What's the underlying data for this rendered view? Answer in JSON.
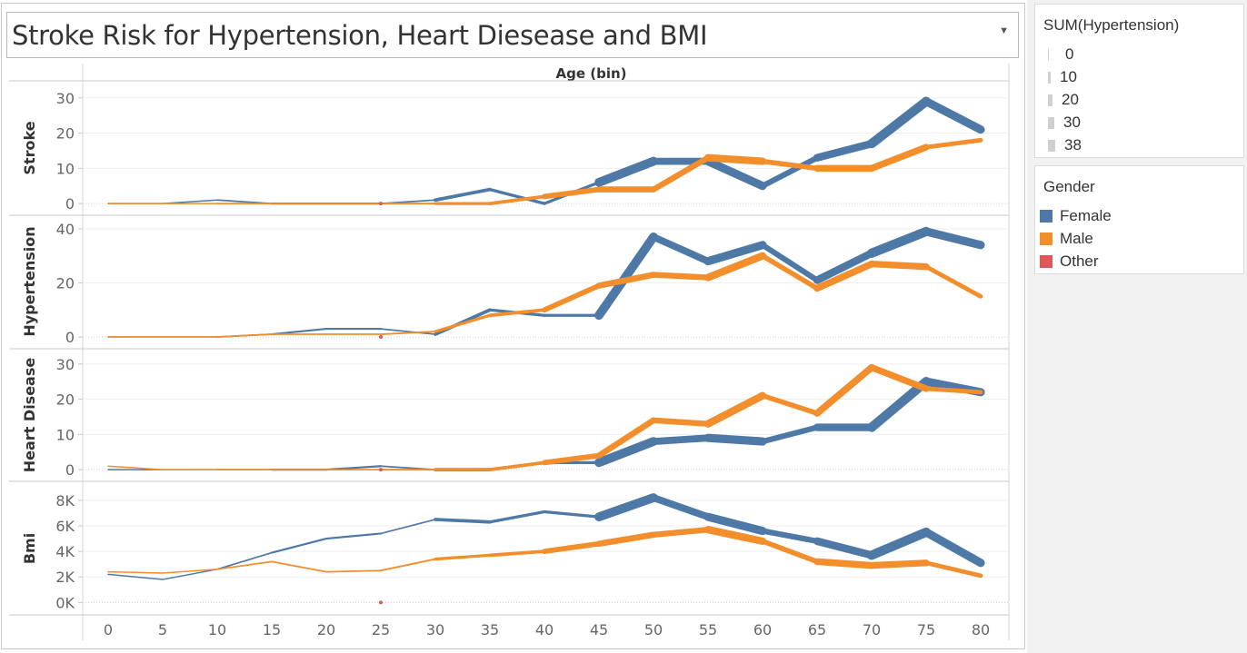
{
  "title": "Stroke Risk for Hypertension, Heart Diesease and BMI",
  "legends": {
    "size": {
      "title": "SUM(Hypertension)",
      "items": [
        "0",
        "10",
        "20",
        "30",
        "38"
      ]
    },
    "color": {
      "title": "Gender",
      "items": [
        {
          "label": "Female",
          "color": "#4e79a7"
        },
        {
          "label": "Male",
          "color": "#f28e2b"
        },
        {
          "label": "Other",
          "color": "#e15759"
        }
      ]
    }
  },
  "chart_data": {
    "type": "line",
    "column_header": "Age (bin)",
    "x": [
      0,
      5,
      10,
      15,
      20,
      25,
      30,
      35,
      40,
      45,
      50,
      55,
      60,
      65,
      70,
      75,
      80
    ],
    "x_ticks": [
      "0",
      "5",
      "10",
      "15",
      "20",
      "25",
      "30",
      "35",
      "40",
      "45",
      "50",
      "55",
      "60",
      "65",
      "70",
      "75",
      "80"
    ],
    "size_by": "SUM(Hypertension)",
    "panels": [
      {
        "label": "Stroke",
        "ylim": [
          -1,
          32
        ],
        "ticks": [
          {
            "v": 0,
            "label": "0"
          },
          {
            "v": 10,
            "label": "10"
          },
          {
            "v": 20,
            "label": "20"
          },
          {
            "v": 30,
            "label": "30"
          }
        ],
        "series": [
          {
            "name": "Female",
            "values": [
              0,
              0,
              1,
              0,
              0,
              0,
              1,
              4,
              0,
              6,
              12,
              12,
              5,
              13,
              17,
              29,
              21
            ]
          },
          {
            "name": "Male",
            "values": [
              0,
              0,
              0,
              0,
              0,
              0,
              0,
              0,
              2,
              4,
              4,
              13,
              12,
              10,
              10,
              16,
              18
            ]
          },
          {
            "name": "Other",
            "points": [
              [
                25,
                0
              ]
            ]
          }
        ]
      },
      {
        "label": "Hypertension",
        "ylim": [
          -1,
          42
        ],
        "ticks": [
          {
            "v": 0,
            "label": "0"
          },
          {
            "v": 20,
            "label": "20"
          },
          {
            "v": 40,
            "label": "40"
          }
        ],
        "series": [
          {
            "name": "Female",
            "values": [
              0,
              0,
              0,
              1,
              3,
              3,
              1,
              10,
              8,
              8,
              37,
              28,
              34,
              21,
              31,
              39,
              34
            ]
          },
          {
            "name": "Male",
            "values": [
              0,
              0,
              0,
              1,
              1,
              1,
              2,
              8,
              10,
              19,
              23,
              22,
              30,
              18,
              27,
              26,
              15
            ]
          },
          {
            "name": "Other",
            "points": [
              [
                25,
                0
              ]
            ]
          }
        ]
      },
      {
        "label": "Heart Disease",
        "ylim": [
          -1,
          32
        ],
        "ticks": [
          {
            "v": 0,
            "label": "0"
          },
          {
            "v": 10,
            "label": "10"
          },
          {
            "v": 20,
            "label": "20"
          },
          {
            "v": 30,
            "label": "30"
          }
        ],
        "series": [
          {
            "name": "Female",
            "values": [
              0,
              0,
              0,
              0,
              0,
              1,
              0,
              0,
              2,
              2,
              8,
              9,
              8,
              12,
              12,
              25,
              22
            ]
          },
          {
            "name": "Male",
            "values": [
              1,
              0,
              0,
              0,
              0,
              0,
              0,
              0,
              2,
              4,
              14,
              13,
              21,
              16,
              29,
              23,
              22
            ]
          },
          {
            "name": "Other",
            "points": [
              [
                25,
                0
              ]
            ]
          }
        ]
      },
      {
        "label": "Bmi",
        "ylim": [
          -400,
          8700
        ],
        "ticks": [
          {
            "v": 0,
            "label": "0K"
          },
          {
            "v": 2000,
            "label": "2K"
          },
          {
            "v": 4000,
            "label": "4K"
          },
          {
            "v": 6000,
            "label": "6K"
          },
          {
            "v": 8000,
            "label": "8K"
          }
        ],
        "series": [
          {
            "name": "Female",
            "values": [
              2200,
              1800,
              2600,
              3900,
              5000,
              5400,
              6500,
              6300,
              7100,
              6700,
              8200,
              6700,
              5600,
              4800,
              3700,
              5500,
              3100
            ]
          },
          {
            "name": "Male",
            "values": [
              2400,
              2300,
              2600,
              3200,
              2400,
              2500,
              3400,
              3700,
              4000,
              4600,
              5300,
              5700,
              4800,
              3200,
              2900,
              3100,
              2100
            ]
          },
          {
            "name": "Other",
            "points": [
              [
                25,
                0
              ]
            ]
          }
        ]
      }
    ],
    "grid": true,
    "legend_position": "right"
  }
}
